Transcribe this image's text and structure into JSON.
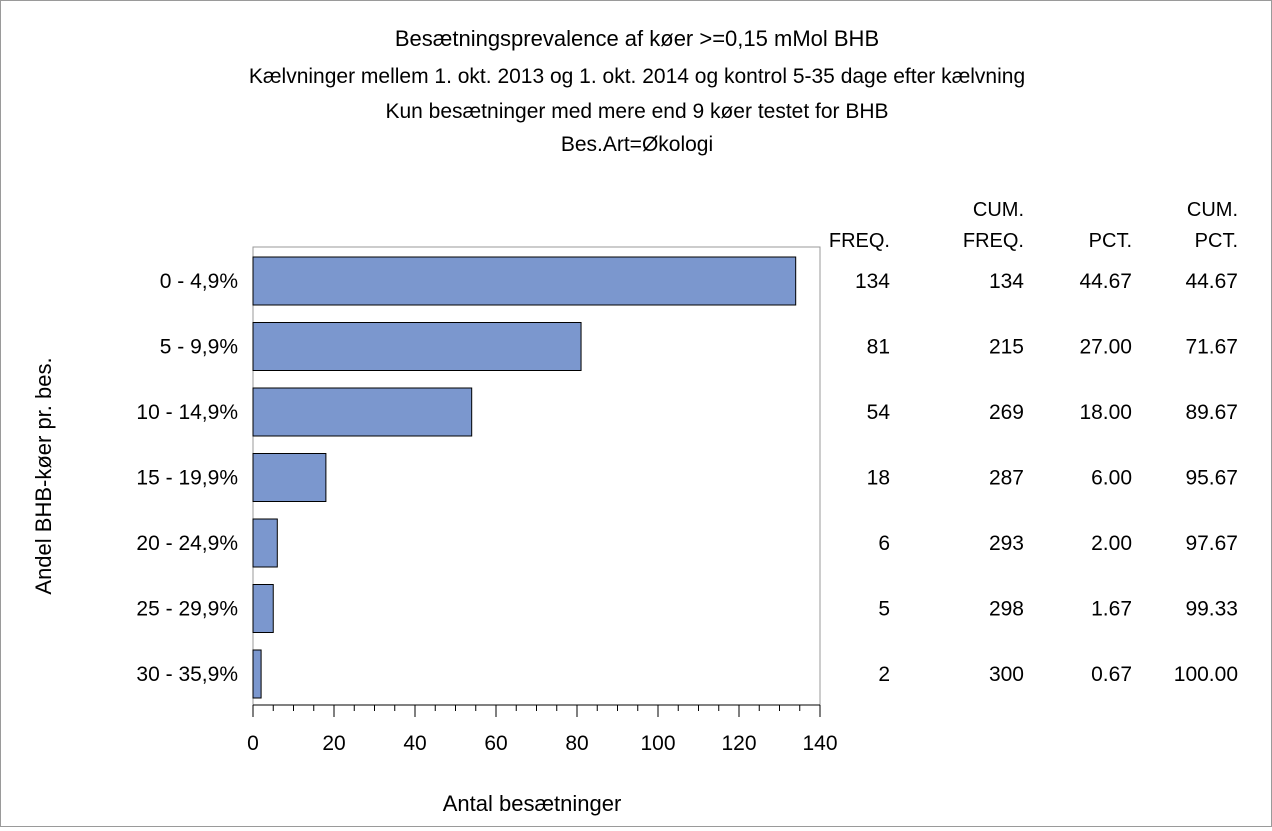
{
  "chart_data": {
    "type": "bar",
    "orientation": "horizontal",
    "title": "Besætningsprevalence af køer >=0,15 mMol BHB",
    "subtitles": [
      "Kælvninger mellem 1. okt. 2013 og 1. okt. 2014 og kontrol 5-35 dage efter kælvning",
      "Kun besætninger med mere end 9 køer testet for BHB",
      "Bes.Art=Økologi"
    ],
    "xlabel": "Antal besætninger",
    "ylabel": "Andel BHB-køer pr. bes.",
    "xlim": [
      0,
      140
    ],
    "x_ticks": [
      0,
      20,
      40,
      60,
      80,
      100,
      120,
      140
    ],
    "categories": [
      "0 - 4,9%",
      "5 - 9,9%",
      "10 - 14,9%",
      "15 - 19,9%",
      "20 - 24,9%",
      "25 - 29,9%",
      "30 - 35,9%"
    ],
    "values": [
      134,
      81,
      54,
      18,
      6,
      5,
      2
    ],
    "bar_color": "#7b97ce",
    "bar_edge_color": "#000000",
    "grid": false,
    "table": {
      "columns": [
        {
          "line1": "",
          "line2": "FREQ."
        },
        {
          "line1": "CUM.",
          "line2": "FREQ."
        },
        {
          "line1": "",
          "line2": "PCT."
        },
        {
          "line1": "CUM.",
          "line2": "PCT."
        }
      ],
      "rows": [
        [
          "134",
          "134",
          "44.67",
          "44.67"
        ],
        [
          "81",
          "215",
          "27.00",
          "71.67"
        ],
        [
          "54",
          "269",
          "18.00",
          "89.67"
        ],
        [
          "18",
          "287",
          "6.00",
          "95.67"
        ],
        [
          "6",
          "293",
          "2.00",
          "97.67"
        ],
        [
          "5",
          "298",
          "1.67",
          "99.33"
        ],
        [
          "2",
          "300",
          "0.67",
          "100.00"
        ]
      ]
    }
  }
}
